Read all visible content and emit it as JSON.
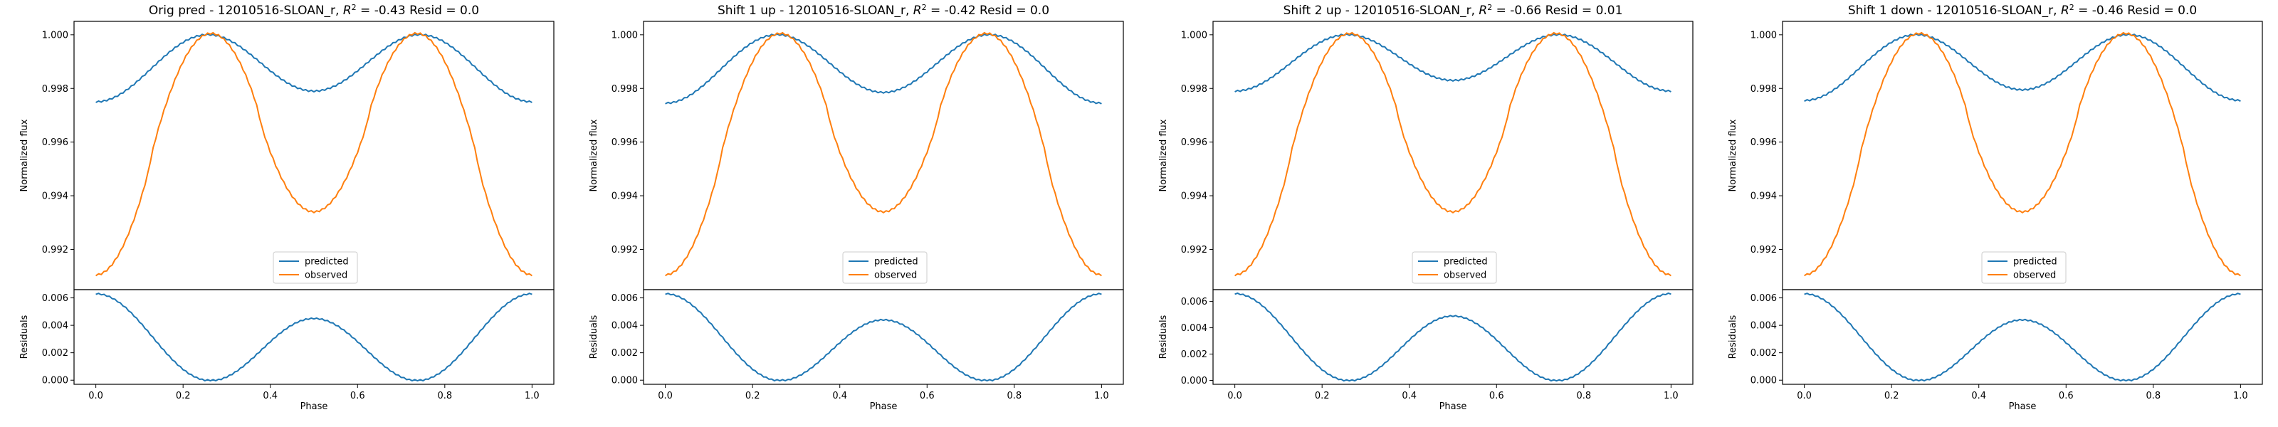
{
  "colors": {
    "predicted": "#1f77b4",
    "observed": "#ff7f0e",
    "axes": "#000000",
    "legend_border": "#cccccc"
  },
  "chart_data": [
    {
      "type": "line",
      "title": "Orig pred - 12010516-SLOAN_r, $R^2 = $-0.43 Resid = 0.0",
      "title_parts": {
        "prefix": "Orig pred - 12010516-SLOAN_r, ",
        "r2_label": "R",
        "r2_sup": "2",
        "suffix": " = -0.43 Resid = 0.0"
      },
      "xlabel": "Phase",
      "ylabel": "Normalized flux",
      "ylabel_resid": "Residuals",
      "xlim": [
        -0.05,
        1.05
      ],
      "ylim": [
        0.9905,
        1.0005
      ],
      "ylim_resid": [
        -0.0003,
        0.0066
      ],
      "xticks": [
        "0.0",
        "0.2",
        "0.4",
        "0.6",
        "0.8",
        "1.0"
      ],
      "yticks": [
        "0.992",
        "0.994",
        "0.996",
        "0.998",
        "1.000"
      ],
      "yticks_resid": [
        "0.000",
        "0.002",
        "0.004",
        "0.006"
      ],
      "legend": {
        "position": "lower-center",
        "entries": [
          "predicted",
          "observed"
        ]
      },
      "series": [
        {
          "name": "predicted",
          "min_flux": 0.9975,
          "secondary_min": 0.9979,
          "max_flux": 1.0
        },
        {
          "name": "observed",
          "min_flux": 0.99105,
          "secondary_min": 0.9934,
          "max_flux": 1.0
        }
      ],
      "residuals": {
        "edge": 0.0063,
        "mid": 0.0045,
        "min": 0.0
      }
    },
    {
      "type": "line",
      "title": "Shift 1 up - 12010516-SLOAN_r, $R^2 = $-0.42 Resid = 0.0",
      "title_parts": {
        "prefix": "Shift 1 up - 12010516-SLOAN_r, ",
        "r2_label": "R",
        "r2_sup": "2",
        "suffix": " = -0.42 Resid = 0.0"
      },
      "xlabel": "Phase",
      "ylabel": "Normalized flux",
      "ylabel_resid": "Residuals",
      "xlim": [
        -0.05,
        1.05
      ],
      "ylim": [
        0.9905,
        1.0005
      ],
      "ylim_resid": [
        -0.0003,
        0.0066
      ],
      "xticks": [
        "0.0",
        "0.2",
        "0.4",
        "0.6",
        "0.8",
        "1.0"
      ],
      "yticks": [
        "0.992",
        "0.994",
        "0.996",
        "0.998",
        "1.000"
      ],
      "yticks_resid": [
        "0.000",
        "0.002",
        "0.004",
        "0.006"
      ],
      "legend": {
        "position": "lower-center",
        "entries": [
          "predicted",
          "observed"
        ]
      },
      "series": [
        {
          "name": "predicted",
          "min_flux": 0.99745,
          "secondary_min": 0.99785,
          "max_flux": 1.0
        },
        {
          "name": "observed",
          "min_flux": 0.99105,
          "secondary_min": 0.9934,
          "max_flux": 1.0
        }
      ],
      "residuals": {
        "edge": 0.0063,
        "mid": 0.0044,
        "min": 0.0
      }
    },
    {
      "type": "line",
      "title": "Shift 2 up - 12010516-SLOAN_r, $R^2 = $-0.66 Resid = 0.01",
      "title_parts": {
        "prefix": "Shift 2 up - 12010516-SLOAN_r, ",
        "r2_label": "R",
        "r2_sup": "2",
        "suffix": " = -0.66 Resid = 0.01"
      },
      "xlabel": "Phase",
      "ylabel": "Normalized flux",
      "ylabel_resid": "Residuals",
      "xlim": [
        -0.05,
        1.05
      ],
      "ylim": [
        0.9905,
        1.0005
      ],
      "ylim_resid": [
        -0.0003,
        0.0069
      ],
      "xticks": [
        "0.0",
        "0.2",
        "0.4",
        "0.6",
        "0.8",
        "1.0"
      ],
      "yticks": [
        "0.992",
        "0.994",
        "0.996",
        "0.998",
        "1.000"
      ],
      "yticks_resid": [
        "0.000",
        "0.002",
        "0.004",
        "0.006"
      ],
      "legend": {
        "position": "lower-center",
        "entries": [
          "predicted",
          "observed"
        ]
      },
      "series": [
        {
          "name": "predicted",
          "min_flux": 0.9979,
          "secondary_min": 0.9983,
          "max_flux": 1.0
        },
        {
          "name": "observed",
          "min_flux": 0.99105,
          "secondary_min": 0.9934,
          "max_flux": 1.0
        }
      ],
      "residuals": {
        "edge": 0.0066,
        "mid": 0.0049,
        "min": 0.0
      }
    },
    {
      "type": "line",
      "title": "Shift 1 down - 12010516-SLOAN_r, $R^2 = $-0.46 Resid = 0.0",
      "title_parts": {
        "prefix": "Shift 1 down - 12010516-SLOAN_r, ",
        "r2_label": "R",
        "r2_sup": "2",
        "suffix": " = -0.46 Resid = 0.0"
      },
      "xlabel": "Phase",
      "ylabel": "Normalized flux",
      "ylabel_resid": "Residuals",
      "xlim": [
        -0.05,
        1.05
      ],
      "ylim": [
        0.9905,
        1.0005
      ],
      "ylim_resid": [
        -0.0003,
        0.0066
      ],
      "xticks": [
        "0.0",
        "0.2",
        "0.4",
        "0.6",
        "0.8",
        "1.0"
      ],
      "yticks": [
        "0.992",
        "0.994",
        "0.996",
        "0.998",
        "1.000"
      ],
      "yticks_resid": [
        "0.000",
        "0.002",
        "0.004",
        "0.006"
      ],
      "legend": {
        "position": "lower-center",
        "entries": [
          "predicted",
          "observed"
        ]
      },
      "series": [
        {
          "name": "predicted",
          "min_flux": 0.99755,
          "secondary_min": 0.99795,
          "max_flux": 1.0
        },
        {
          "name": "observed",
          "min_flux": 0.99105,
          "secondary_min": 0.9934,
          "max_flux": 1.0
        }
      ],
      "residuals": {
        "edge": 0.0063,
        "mid": 0.0044,
        "min": 0.0
      }
    }
  ]
}
